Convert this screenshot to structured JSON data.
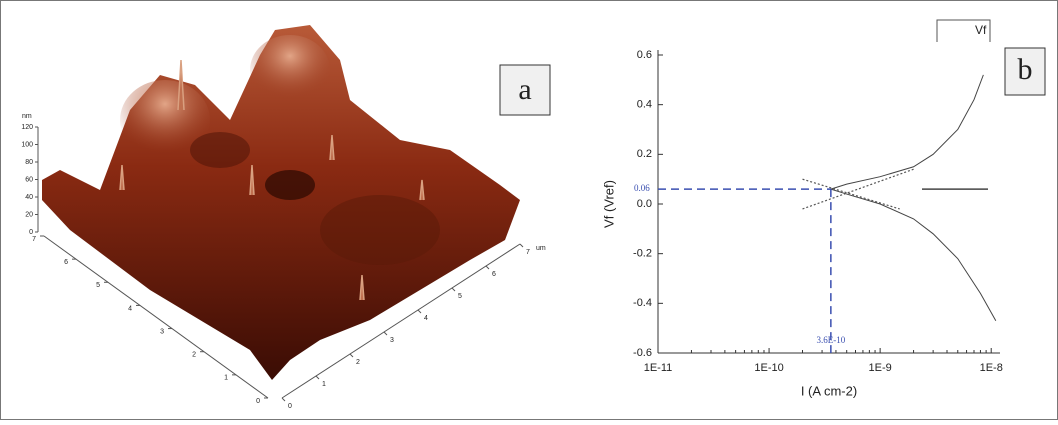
{
  "chart_data": [
    {
      "type": "surface",
      "panel": "a",
      "zlabel": "nm",
      "xlabel": "um",
      "zticks": [
        0,
        20,
        40,
        60,
        80,
        100,
        120
      ],
      "yticks": [
        0,
        1,
        2,
        3,
        4,
        5,
        6,
        7
      ],
      "xticks": [
        0,
        1,
        2,
        3,
        4,
        5,
        6,
        7
      ]
    },
    {
      "type": "line",
      "panel": "b",
      "xlabel": "I (A cm-2)",
      "ylabel": "Vf (Vref)",
      "log_x": true,
      "legend": "top-right",
      "xlim": [
        1e-11,
        1.2e-08
      ],
      "xticks": [
        {
          "value": 1e-11,
          "label": "1E-11"
        },
        {
          "value": 1e-10,
          "label": "1E-10"
        },
        {
          "value": 1e-09,
          "label": "1E-9"
        },
        {
          "value": 1e-08,
          "label": "1E-8"
        }
      ],
      "ylim": [
        -0.6,
        0.6
      ],
      "yticks": [
        -0.6,
        -0.4,
        -0.2,
        {
          "value": 0,
          "label": "0.0"
        },
        0.2,
        0.4,
        0.6
      ],
      "hline": {
        "value": 0.06,
        "label": "0.06"
      },
      "vline": {
        "value": 3.6e-10,
        "label": "3.6E-10"
      },
      "marker_color": "#3a4fb0",
      "series": [
        {
          "name": "Vf",
          "color": "#444444",
          "x": [
            3.6e-10,
            5e-10,
            1e-09,
            2e-09,
            3e-09,
            5e-09,
            7e-09,
            8.5e-09,
            null,
            3.6e-10,
            5e-10,
            1e-09,
            2e-09,
            3e-09,
            5e-09,
            8e-09,
            1.1e-08
          ],
          "values": [
            0.06,
            0.08,
            0.11,
            0.15,
            0.2,
            0.3,
            0.42,
            0.52,
            null,
            0.06,
            0.04,
            0.0,
            -0.06,
            -0.12,
            -0.22,
            -0.36,
            -0.47
          ]
        },
        {
          "color": "#555555",
          "x": [
            2e-10,
            2e-09
          ],
          "values": [
            -0.02,
            0.14
          ]
        },
        {
          "color": "#555555",
          "x": [
            2e-10,
            1.5e-09
          ],
          "values": [
            0.1,
            -0.02
          ]
        }
      ]
    }
  ]
}
